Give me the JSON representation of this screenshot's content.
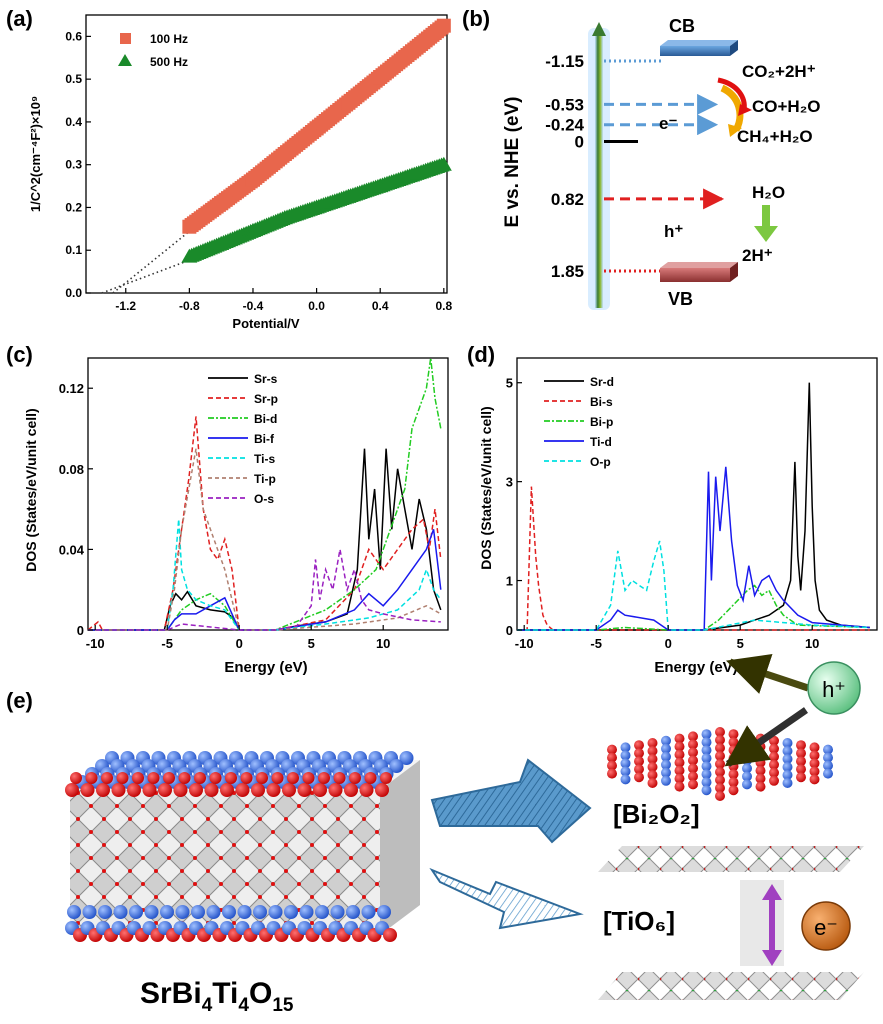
{
  "panels": {
    "a": "(a)",
    "b": "(b)",
    "c": "(c)",
    "d": "(d)",
    "e": "(e)"
  },
  "chart_data": [
    {
      "id": "a",
      "type": "scatter",
      "xlabel": "Potential/V",
      "ylabel": "1/C^2(cm⁻⁴F²)×10⁹",
      "xlim": [
        -1.45,
        0.82
      ],
      "ylim": [
        0.0,
        0.65
      ],
      "xticks": [
        -1.2,
        -0.8,
        -0.4,
        0.0,
        0.4,
        0.8
      ],
      "xtick_labels": [
        "-1.2",
        "-0.8",
        "-0.4",
        "0.0",
        "0.4",
        "0.8"
      ],
      "yticks": [
        0.0,
        0.1,
        0.2,
        0.3,
        0.4,
        0.5,
        0.6
      ],
      "ytick_labels": [
        "0.0",
        "0.1",
        "0.2",
        "0.3",
        "0.4",
        "0.5",
        "0.6"
      ],
      "series": [
        {
          "name": "100 Hz",
          "marker": "square",
          "color": "#e8664c",
          "x": [
            -0.8,
            -0.6,
            -0.4,
            -0.2,
            0.0,
            0.2,
            0.4,
            0.6,
            0.8
          ],
          "y": [
            0.155,
            0.21,
            0.265,
            0.325,
            0.385,
            0.445,
            0.505,
            0.565,
            0.625
          ],
          "fit_x": [
            -1.28,
            -0.8
          ],
          "fit_y": [
            0.0,
            0.155
          ]
        },
        {
          "name": "500 Hz",
          "marker": "triangle",
          "color": "#1a8a2a",
          "x": [
            -0.8,
            -0.6,
            -0.4,
            -0.2,
            0.0,
            0.2,
            0.4,
            0.6,
            0.8
          ],
          "y": [
            0.085,
            0.115,
            0.145,
            0.175,
            0.2,
            0.225,
            0.25,
            0.275,
            0.3
          ],
          "fit_x": [
            -1.35,
            -0.8
          ],
          "fit_y": [
            0.0,
            0.085
          ]
        }
      ]
    },
    {
      "id": "b",
      "type": "diagram",
      "ylabel": "E vs. NHE  (eV)",
      "levels": [
        {
          "value": "-1.15",
          "v": -1.15,
          "style": "dotted",
          "color": "#5b9bd5"
        },
        {
          "value": "-0.53",
          "v": -0.53,
          "style": "dashed",
          "color": "#5b9bd5"
        },
        {
          "value": "-0.24",
          "v": -0.24,
          "style": "dashed",
          "color": "#5b9bd5"
        },
        {
          "value": "0",
          "v": 0.0,
          "style": "solid",
          "color": "#000000"
        },
        {
          "value": "0.82",
          "v": 0.82,
          "style": "dashed",
          "color": "#e02020"
        },
        {
          "value": "1.85",
          "v": 1.85,
          "style": "dotted",
          "color": "#e02020"
        }
      ],
      "cb_label": "CB",
      "vb_label": "VB",
      "electron_label": "e⁻",
      "hole_label": "h⁺",
      "reactions": {
        "co2": "CO₂+2H⁺",
        "co": "CO+H₂O",
        "ch4": "CH₄+H₂O",
        "h2o": "H₂O",
        "h": "2H⁺"
      }
    },
    {
      "id": "c",
      "type": "line",
      "xlabel": "Energy (eV)",
      "ylabel": "DOS (States/eV/unit cell)",
      "xlim": [
        -10.5,
        14.5
      ],
      "ylim": [
        0,
        0.135
      ],
      "xticks": [
        -10,
        -5,
        0,
        5,
        10
      ],
      "xtick_labels": [
        "-10",
        "-5",
        "0",
        "5",
        "10"
      ],
      "yticks": [
        0.0,
        0.04,
        0.08,
        0.12
      ],
      "ytick_labels": [
        "0",
        "0.04",
        "0.08",
        "0.12"
      ],
      "series": [
        {
          "name": "Sr-s",
          "color": "#000000",
          "dash": "",
          "x": [
            -10.5,
            -5.2,
            -4.8,
            -4.4,
            -4.0,
            -3.6,
            -3.0,
            -2.0,
            -1.0,
            -0.4,
            0.0,
            2.5,
            4.0,
            6.0,
            7.5,
            8.2,
            8.7,
            9.0,
            9.4,
            9.8,
            10.2,
            10.6,
            11.0,
            11.5,
            12.0,
            12.5,
            13.0,
            13.5,
            14.0
          ],
          "y": [
            0.0,
            0.0,
            0.012,
            0.018,
            0.015,
            0.019,
            0.012,
            0.01,
            0.009,
            0.006,
            0.0,
            0.0,
            0.002,
            0.004,
            0.008,
            0.03,
            0.09,
            0.045,
            0.07,
            0.03,
            0.09,
            0.05,
            0.08,
            0.06,
            0.04,
            0.065,
            0.05,
            0.02,
            0.01
          ]
        },
        {
          "name": "Sr-p",
          "color": "#e02020",
          "dash": "5,3",
          "x": [
            -10.5,
            -9.8,
            -9.5,
            -5.2,
            -4.6,
            -4.0,
            -3.5,
            -3.0,
            -2.5,
            -2.0,
            -1.5,
            -1.0,
            -0.5,
            0.0,
            2.5,
            6.0,
            8.0,
            9.0,
            10.0,
            11.0,
            12.0,
            12.8,
            13.2,
            13.6,
            14.0
          ],
          "y": [
            0.0,
            0.004,
            0.0,
            0.0,
            0.02,
            0.05,
            0.075,
            0.106,
            0.06,
            0.04,
            0.035,
            0.045,
            0.03,
            0.0,
            0.0,
            0.005,
            0.02,
            0.04,
            0.03,
            0.04,
            0.05,
            0.055,
            0.04,
            0.06,
            0.035
          ]
        },
        {
          "name": "Bi-d",
          "color": "#22cc22",
          "dash": "6,2,2,2",
          "x": [
            -10.5,
            -5.0,
            -4.0,
            -3.0,
            -2.0,
            -1.0,
            0.0,
            2.5,
            6.0,
            8.0,
            9.5,
            10.5,
            11.0,
            11.5,
            12.0,
            12.5,
            13.0,
            13.3,
            13.6,
            14.0
          ],
          "y": [
            0.0,
            0.0,
            0.01,
            0.015,
            0.018,
            0.012,
            0.0,
            0.0,
            0.01,
            0.02,
            0.03,
            0.05,
            0.06,
            0.07,
            0.1,
            0.11,
            0.12,
            0.135,
            0.115,
            0.1
          ]
        },
        {
          "name": "Bi-f",
          "color": "#1a1aee",
          "dash": "",
          "x": [
            -10.5,
            -5.0,
            -4.5,
            -4.0,
            -3.0,
            -2.0,
            -1.0,
            -0.5,
            0.0,
            2.5,
            6.0,
            8.0,
            9.0,
            10.0,
            11.0,
            12.0,
            13.0,
            13.5,
            14.0
          ],
          "y": [
            0.0,
            0.0,
            0.005,
            0.008,
            0.008,
            0.012,
            0.016,
            0.008,
            0.0,
            0.0,
            0.004,
            0.01,
            0.018,
            0.012,
            0.02,
            0.03,
            0.04,
            0.05,
            0.02
          ]
        },
        {
          "name": "Ti-s",
          "color": "#00e0e0",
          "dash": "5,3",
          "x": [
            -10.5,
            -5.0,
            -4.6,
            -4.2,
            -4.0,
            -3.6,
            -3.0,
            -2.0,
            -1.0,
            0.0,
            2.5,
            6.0,
            9.0,
            11.0,
            12.5,
            13.0,
            13.5,
            14.0
          ],
          "y": [
            0.0,
            0.0,
            0.02,
            0.055,
            0.03,
            0.02,
            0.015,
            0.012,
            0.01,
            0.0,
            0.0,
            0.003,
            0.006,
            0.01,
            0.02,
            0.03,
            0.02,
            0.015
          ]
        },
        {
          "name": "Ti-p",
          "color": "#b08070",
          "dash": "4,3",
          "x": [
            -10.5,
            -5.0,
            -4.5,
            -4.0,
            -3.5,
            -3.0,
            -2.5,
            -2.0,
            -1.0,
            0.0,
            2.5,
            8.0,
            11.0,
            13.0,
            14.0
          ],
          "y": [
            0.0,
            0.0,
            0.02,
            0.05,
            0.07,
            0.09,
            0.06,
            0.05,
            0.03,
            0.0,
            0.0,
            0.003,
            0.006,
            0.012,
            0.008
          ]
        },
        {
          "name": "O-s",
          "color": "#9a20c0",
          "dash": "5,3",
          "x": [
            -10.5,
            -5.0,
            -4.0,
            0.0,
            2.5,
            4.0,
            5.0,
            5.3,
            5.6,
            6.0,
            6.5,
            7.0,
            7.5,
            8.0,
            8.5,
            9.0,
            10.0,
            12.0,
            14.0
          ],
          "y": [
            0.0,
            0.0,
            0.003,
            0.0,
            0.0,
            0.002,
            0.012,
            0.035,
            0.015,
            0.03,
            0.02,
            0.04,
            0.02,
            0.03,
            0.015,
            0.01,
            0.008,
            0.005,
            0.004
          ]
        }
      ]
    },
    {
      "id": "d",
      "type": "line",
      "xlabel": "Energy (eV)",
      "ylabel": "DOS (States/eV/unit cell)",
      "xlim": [
        -10.5,
        14.5
      ],
      "ylim": [
        0,
        5.5
      ],
      "xticks": [
        -10,
        -5,
        0,
        5,
        10
      ],
      "xtick_labels": [
        "-10",
        "-5",
        "0",
        "5",
        "10"
      ],
      "yticks": [
        0,
        1,
        3,
        5
      ],
      "ytick_labels": [
        "0",
        "1",
        "3",
        "5"
      ],
      "series": [
        {
          "name": "Sr-d",
          "color": "#000000",
          "dash": "",
          "x": [
            -10.5,
            2.5,
            5.0,
            6.0,
            7.0,
            8.0,
            8.5,
            8.8,
            9.0,
            9.2,
            9.5,
            9.8,
            10.0,
            10.2,
            10.5,
            11.0,
            12.0,
            14.0
          ],
          "y": [
            0.0,
            0.0,
            0.1,
            0.2,
            0.3,
            0.5,
            1.0,
            3.4,
            1.5,
            0.8,
            2.0,
            5.0,
            2.5,
            1.0,
            0.4,
            0.2,
            0.1,
            0.05
          ]
        },
        {
          "name": "Bi-s",
          "color": "#e02020",
          "dash": "5,3",
          "x": [
            -10.5,
            -9.8,
            -9.5,
            -9.2,
            -9.0,
            -8.7,
            -8.4,
            -8.0,
            -5.0,
            0.0,
            14.0
          ],
          "y": [
            0.0,
            0.0,
            2.9,
            1.5,
            0.9,
            0.3,
            0.1,
            0.0,
            0.0,
            0.0,
            0.0
          ]
        },
        {
          "name": "Bi-p",
          "color": "#22cc22",
          "dash": "6,2,2,2",
          "x": [
            -10.5,
            -5.0,
            -3.0,
            0.0,
            2.5,
            3.5,
            4.5,
            5.5,
            6.0,
            6.5,
            7.0,
            7.5,
            8.0,
            9.0,
            14.0
          ],
          "y": [
            0.0,
            0.0,
            0.05,
            0.0,
            0.0,
            0.2,
            0.5,
            0.8,
            0.9,
            0.7,
            0.8,
            0.5,
            0.3,
            0.1,
            0.05
          ]
        },
        {
          "name": "Ti-d",
          "color": "#1a1aee",
          "dash": "",
          "x": [
            -10.5,
            -5.0,
            -4.0,
            -3.5,
            -3.0,
            -1.0,
            0.0,
            2.5,
            2.8,
            3.0,
            3.3,
            3.6,
            4.0,
            4.4,
            4.8,
            5.2,
            5.6,
            6.0,
            6.5,
            7.0,
            7.5,
            8.0,
            9.0,
            10.0,
            14.0
          ],
          "y": [
            0.0,
            0.0,
            0.2,
            0.4,
            0.3,
            0.2,
            0.0,
            0.0,
            3.2,
            1.0,
            3.1,
            2.0,
            3.3,
            1.8,
            0.9,
            0.6,
            1.3,
            0.7,
            1.0,
            1.1,
            0.8,
            0.6,
            0.3,
            0.15,
            0.05
          ]
        },
        {
          "name": "O-p",
          "color": "#00e0e0",
          "dash": "5,3",
          "x": [
            -10.5,
            -5.0,
            -4.0,
            -3.5,
            -3.0,
            -2.5,
            -2.0,
            -1.5,
            -1.0,
            -0.6,
            -0.3,
            0.0,
            2.5,
            6.0,
            10.0,
            14.0
          ],
          "y": [
            0.0,
            0.0,
            0.5,
            1.6,
            0.8,
            1.0,
            0.9,
            0.8,
            1.4,
            1.8,
            1.2,
            0.0,
            0.0,
            0.2,
            0.1,
            0.05
          ]
        }
      ]
    }
  ],
  "panel_e": {
    "compound_main": "SrBi",
    "sub1": "4",
    "mid": "Ti",
    "sub2": "4",
    "o": "O",
    "sub3": "15",
    "layer_bi2o2": "[Bi₂O₂]",
    "layer_tio6": "[TiO₆]",
    "hole_label": "h⁺",
    "electron_label": "e⁻"
  },
  "colors": {
    "orange_marker": "#e8664c",
    "green_marker": "#1a8a2a",
    "cb_blue": "#3a78b8",
    "vb_red": "#b85050",
    "atom_red": "#e01010",
    "atom_blue": "#3a6ee8"
  }
}
